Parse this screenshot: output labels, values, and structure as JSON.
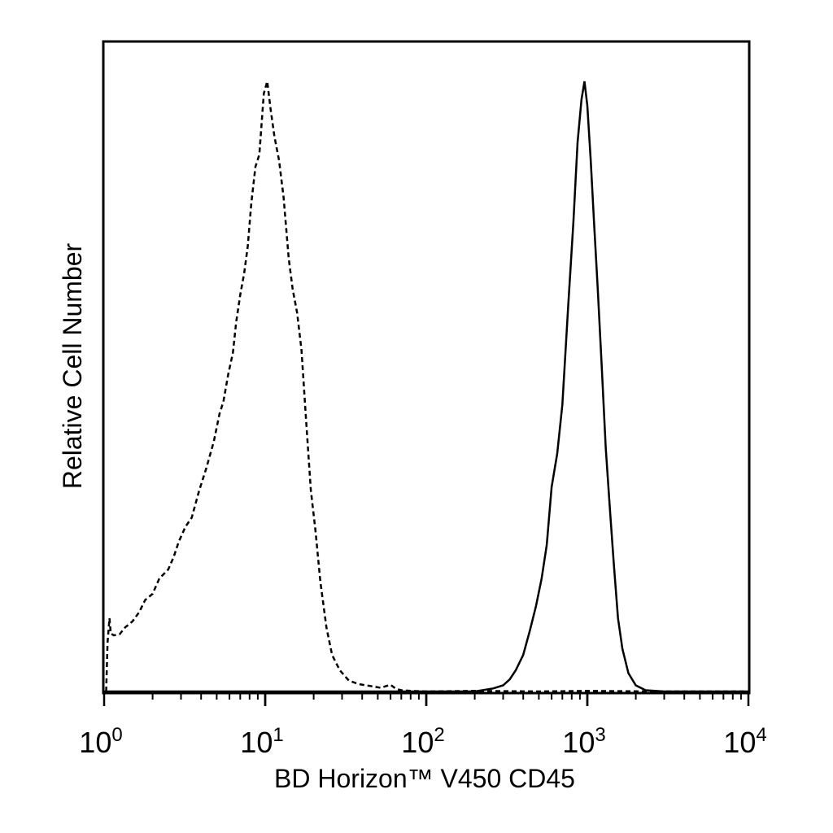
{
  "chart_data": {
    "type": "line",
    "title": "",
    "xlabel": "BD Horizon™ V450 CD45",
    "ylabel": "Relative Cell Number",
    "x_scale": "log",
    "xlim": [
      1,
      10000
    ],
    "ylim": [
      0,
      100
    ],
    "grid": false,
    "x_ticks": [
      {
        "base": "10",
        "exp": "0",
        "value": 1
      },
      {
        "base": "10",
        "exp": "1",
        "value": 10
      },
      {
        "base": "10",
        "exp": "2",
        "value": 100
      },
      {
        "base": "10",
        "exp": "3",
        "value": 1000
      },
      {
        "base": "10",
        "exp": "4",
        "value": 10000
      }
    ],
    "series": [
      {
        "style": "dashed",
        "color": "#000000",
        "x": [
          1.03,
          1.05,
          1.08,
          1.1,
          1.15,
          1.25,
          1.35,
          1.5,
          1.65,
          1.8,
          2.0,
          2.2,
          2.5,
          2.7,
          2.9,
          3.2,
          3.5,
          3.9,
          4.3,
          4.8,
          5.2,
          5.5,
          5.9,
          6.3,
          6.6,
          7.0,
          7.4,
          7.8,
          8.2,
          8.7,
          9.2,
          9.8,
          10.3,
          10.8,
          11.4,
          12.2,
          13.0,
          14.0,
          14.8,
          15.8,
          16.8,
          18.0,
          19.2,
          20.5,
          22.0,
          24.0,
          26.0,
          29.0,
          33.0,
          38.0,
          45.0,
          52.0,
          60.0,
          65.0,
          70.0,
          80.0,
          100.0,
          200.0,
          500.0,
          1000.0,
          2500.0,
          10000.0
        ],
        "y": [
          0,
          8,
          12,
          9.5,
          9.2,
          9.4,
          10.5,
          11.5,
          13,
          15,
          16,
          18.5,
          20,
          22,
          24.5,
          27,
          28.5,
          33,
          36.5,
          41,
          45.5,
          47.5,
          52,
          55.5,
          60.5,
          65,
          68.5,
          73,
          80,
          86,
          88,
          98,
          100,
          95.5,
          91,
          87,
          81,
          71,
          66,
          62,
          56,
          44,
          33,
          26.5,
          18,
          10.5,
          6,
          3.5,
          1.8,
          1.2,
          0.9,
          0.6,
          1.1,
          0.4,
          0.2,
          0.1,
          0,
          0.1,
          0,
          0.1,
          0,
          0
        ]
      },
      {
        "style": "solid",
        "color": "#000000",
        "x": [
          1,
          100,
          200,
          260,
          300,
          330,
          360,
          400,
          440,
          480,
          520,
          560,
          600,
          650,
          700,
          760,
          820,
          870,
          920,
          960,
          1000,
          1050,
          1100,
          1160,
          1230,
          1300,
          1380,
          1460,
          1550,
          1650,
          1800,
          2000,
          2300,
          3000,
          10000
        ],
        "y": [
          0,
          0,
          0,
          0.5,
          1,
          2,
          3.5,
          6,
          10,
          14,
          18.5,
          24,
          33.5,
          39,
          47,
          63,
          77,
          90,
          97,
          100,
          96,
          87,
          77,
          66,
          53,
          40,
          30,
          21,
          12,
          7,
          3,
          1,
          0.2,
          0,
          0
        ]
      }
    ]
  }
}
